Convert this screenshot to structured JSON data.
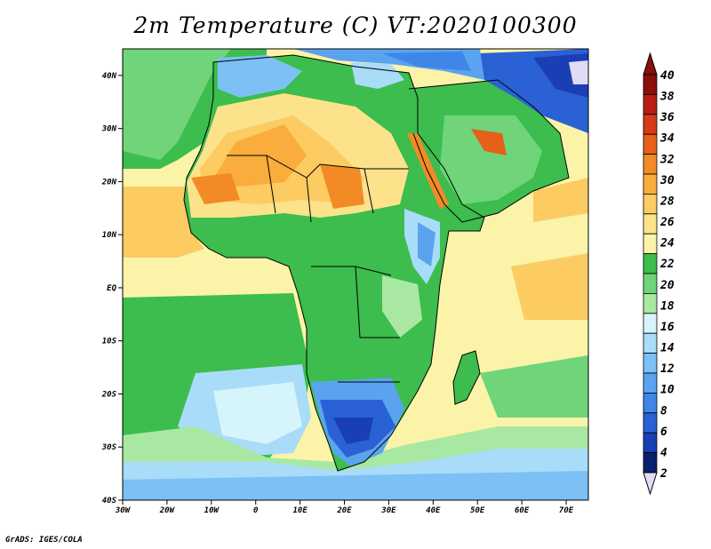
{
  "title": "2m Temperature (C) VT:2020100300",
  "credit": "GrADS: IGES/COLA",
  "map": {
    "lat_ticks": [
      "40N",
      "30N",
      "20N",
      "10N",
      "EQ",
      "10S",
      "20S",
      "30S",
      "40S"
    ],
    "lon_ticks": [
      "30W",
      "20W",
      "10W",
      "0",
      "10E",
      "20E",
      "30E",
      "40E",
      "50E",
      "60E",
      "70E"
    ]
  },
  "colorbar": {
    "labels": [
      "2",
      "4",
      "6",
      "8",
      "10",
      "12",
      "14",
      "16",
      "18",
      "20",
      "22",
      "24",
      "26",
      "28",
      "30",
      "32",
      "34",
      "36",
      "38",
      "40"
    ],
    "colors": [
      "#0a1f6e",
      "#1a3fb4",
      "#2a62d6",
      "#3f86e8",
      "#5aa4ef",
      "#7cc0f5",
      "#a8dcf9",
      "#d6f4fb",
      "#a9e8a2",
      "#6fd47a",
      "#3cbd4d",
      "#fbf3a8",
      "#fde28c",
      "#fccb62",
      "#f9ad3d",
      "#f28b25",
      "#e6601a",
      "#d63a17",
      "#b81e13",
      "#8a0e0a"
    ],
    "low_tri_color": "#e0dcf5",
    "high_tri_color": "#8a0e0a"
  }
}
